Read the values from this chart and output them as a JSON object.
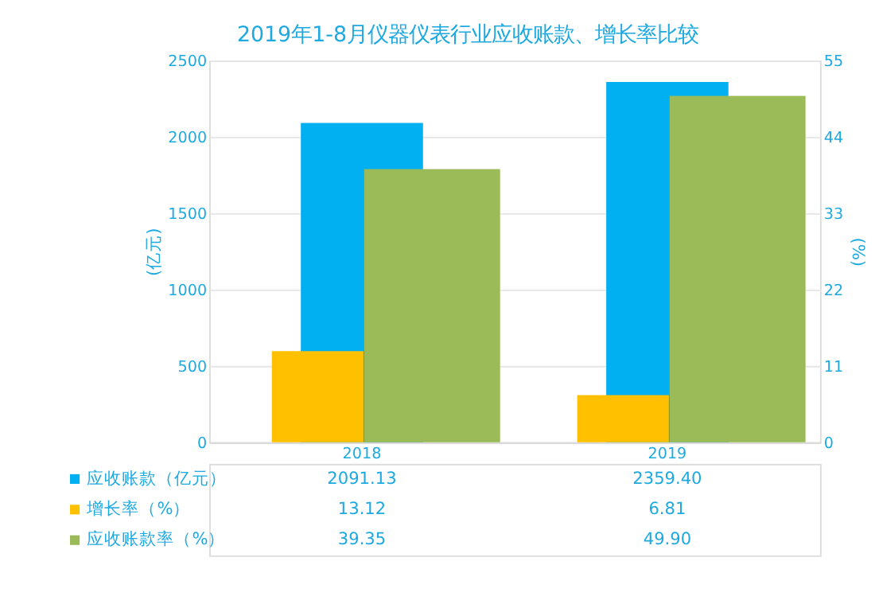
{
  "chart_data": {
    "type": "bar",
    "title": "2019年1-8月仪器仪表行业应收账款、增长率比较",
    "ylabel": "(亿元)",
    "y2label": "(%)",
    "categories": [
      "2018",
      "2019"
    ],
    "series": [
      {
        "name": "应收账款（亿元）",
        "color": "#00b0f0",
        "values": [
          2091.13,
          2359.4
        ],
        "value_labels": [
          "2091.13",
          "2359.40"
        ]
      },
      {
        "name": "增长率（%）",
        "color": "#ffc000",
        "values": [
          13.12,
          6.81
        ],
        "axis": "y2",
        "value_labels": [
          "13.12",
          "6.81"
        ]
      },
      {
        "name": "应收账款率（%）",
        "color": "#9bbb59",
        "values": [
          39.35,
          49.9
        ],
        "axis": "y2",
        "value_labels": [
          "39.35",
          "49.90"
        ]
      }
    ],
    "ylim": [
      0,
      2500
    ],
    "yticks": [
      0,
      500,
      1000,
      1500,
      2000,
      2500
    ],
    "y2lim": [
      0,
      55
    ],
    "y2ticks": [
      0,
      11,
      22,
      33,
      44,
      55
    ],
    "grid": "y",
    "legend": "bottom"
  }
}
